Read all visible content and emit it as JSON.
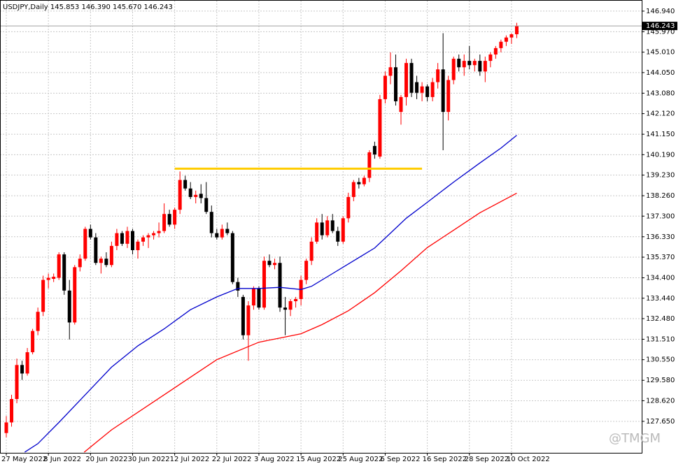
{
  "chart_data": {
    "type": "candlestick",
    "symbol": "USDJPY,Daily",
    "info_values": [
      "145.853",
      "146.390",
      "145.670",
      "146.243"
    ],
    "categories": [
      "27 May 2022",
      null,
      null,
      null,
      null,
      null,
      null,
      null,
      "8 Jun 2022",
      null,
      null,
      null,
      null,
      null,
      null,
      null,
      "20 Jun 2022",
      null,
      null,
      null,
      null,
      null,
      null,
      null,
      "30 Jun 2022",
      null,
      null,
      null,
      null,
      null,
      null,
      null,
      "12 Jul 2022",
      null,
      null,
      null,
      null,
      null,
      null,
      null,
      "22 Jul 2022",
      null,
      null,
      null,
      null,
      null,
      null,
      null,
      "3 Aug 2022",
      null,
      null,
      null,
      null,
      null,
      null,
      null,
      "15 Aug 2022",
      null,
      null,
      null,
      null,
      null,
      null,
      null,
      "25 Aug 2022",
      null,
      null,
      null,
      null,
      null,
      null,
      null,
      "6 Sep 2022",
      null,
      null,
      null,
      null,
      null,
      null,
      null,
      "16 Sep 2022",
      null,
      null,
      null,
      null,
      null,
      null,
      null,
      "28 Sep 2022",
      null,
      null,
      null,
      null,
      null,
      null,
      null,
      "10 Oct 2022",
      null
    ],
    "open": [
      127.1,
      127.6,
      128.7,
      130.3,
      129.9,
      130.9,
      131.9,
      132.8,
      134.3,
      134.35,
      134.4,
      135.5,
      133.8,
      132.3,
      134.9,
      135.3,
      136.7,
      136.3,
      135.1,
      135.3,
      135.0,
      135.9,
      136.5,
      136.0,
      136.6,
      135.7,
      136.1,
      136.3,
      136.4,
      136.5,
      136.6,
      137.4,
      136.9,
      137.6,
      139.0,
      138.6,
      138.2,
      138.35,
      138.15,
      137.5,
      136.5,
      136.3,
      136.7,
      136.5,
      134.2,
      133.5,
      131.7,
      133.1,
      133.9,
      133.0,
      135.2,
      135.0,
      135.1,
      133.0,
      132.9,
      133.3,
      133.4,
      134.3,
      135.2,
      136.1,
      137.0,
      136.4,
      137.1,
      136.6,
      136.1,
      137.2,
      138.2,
      138.9,
      138.8,
      139.1,
      140.6,
      140.1,
      142.8,
      143.9,
      144.3,
      142.2,
      142.9,
      144.5,
      143.6,
      143.1,
      143.4,
      142.9,
      143.6,
      144.2,
      142.2,
      143.7,
      144.7,
      144.3,
      144.6,
      144.4,
      144.6,
      144.1,
      144.6,
      144.9,
      145.2,
      145.5,
      145.7,
      145.853
    ],
    "high": [
      127.9,
      128.9,
      130.6,
      130.5,
      131.1,
      132.0,
      133.0,
      134.5,
      134.6,
      134.6,
      135.6,
      135.6,
      134.3,
      135.0,
      135.5,
      136.8,
      136.9,
      136.5,
      135.4,
      135.6,
      136.1,
      136.7,
      136.6,
      136.8,
      136.7,
      136.2,
      136.4,
      136.5,
      136.6,
      137.0,
      137.9,
      137.6,
      137.7,
      139.4,
      139.2,
      138.9,
      138.5,
      138.8,
      138.9,
      137.8,
      136.7,
      136.9,
      137.0,
      136.6,
      134.4,
      133.6,
      133.3,
      134.0,
      134.0,
      135.4,
      135.5,
      135.3,
      135.4,
      133.5,
      133.4,
      133.5,
      134.5,
      135.3,
      136.3,
      137.2,
      137.4,
      137.3,
      137.4,
      136.8,
      137.3,
      138.4,
      139.0,
      139.1,
      139.2,
      140.4,
      140.8,
      143.0,
      144.1,
      145.0,
      144.9,
      143.0,
      144.7,
      144.7,
      143.9,
      143.6,
      143.5,
      143.8,
      144.5,
      145.9,
      143.9,
      144.8,
      144.9,
      144.9,
      145.3,
      144.7,
      144.9,
      144.8,
      145.0,
      145.3,
      145.6,
      145.8,
      145.9,
      146.39
    ],
    "low": [
      126.9,
      127.4,
      128.5,
      129.6,
      129.8,
      130.8,
      131.7,
      132.6,
      133.9,
      134.2,
      134.3,
      133.6,
      131.5,
      132.2,
      134.7,
      135.2,
      136.2,
      135.0,
      134.6,
      134.9,
      134.9,
      135.7,
      135.9,
      135.8,
      135.5,
      135.3,
      135.9,
      135.8,
      136.2,
      136.3,
      136.5,
      136.8,
      136.7,
      137.4,
      138.5,
      138.1,
      137.9,
      137.9,
      137.4,
      136.3,
      136.2,
      136.2,
      136.4,
      134.1,
      133.5,
      131.5,
      130.5,
      132.9,
      132.9,
      132.9,
      134.9,
      134.8,
      132.8,
      131.7,
      132.6,
      133.0,
      133.1,
      134.1,
      135.0,
      136.0,
      136.2,
      136.3,
      136.5,
      135.9,
      136.0,
      137.0,
      138.0,
      138.6,
      138.7,
      138.9,
      140.0,
      140.0,
      142.6,
      143.5,
      142.5,
      141.6,
      142.5,
      142.9,
      142.8,
      142.7,
      142.7,
      142.7,
      143.3,
      140.4,
      141.8,
      143.5,
      144.1,
      143.9,
      144.2,
      144.1,
      143.9,
      143.6,
      144.3,
      144.7,
      145.0,
      145.3,
      145.4,
      145.67
    ],
    "close": [
      127.6,
      128.7,
      130.3,
      129.9,
      130.9,
      131.9,
      132.8,
      134.3,
      134.4,
      134.45,
      135.5,
      133.8,
      132.3,
      134.9,
      135.3,
      136.7,
      136.3,
      135.1,
      135.3,
      135.0,
      135.9,
      136.5,
      136.0,
      136.6,
      135.7,
      136.1,
      136.3,
      136.4,
      136.5,
      136.6,
      137.4,
      136.9,
      137.6,
      139.0,
      138.6,
      138.2,
      138.3,
      138.15,
      137.5,
      136.5,
      136.3,
      136.7,
      136.5,
      134.2,
      133.8,
      131.7,
      133.1,
      133.9,
      133.0,
      135.2,
      135.0,
      135.1,
      133.0,
      132.9,
      133.3,
      133.4,
      134.3,
      135.2,
      136.1,
      137.0,
      136.4,
      137.1,
      136.6,
      136.1,
      137.2,
      138.2,
      138.9,
      138.8,
      139.1,
      140.3,
      140.2,
      142.8,
      143.9,
      144.3,
      142.7,
      142.9,
      144.5,
      143.1,
      143.1,
      143.4,
      142.9,
      143.6,
      144.2,
      142.2,
      143.7,
      144.7,
      144.3,
      144.6,
      144.4,
      144.6,
      144.1,
      144.6,
      144.9,
      145.2,
      145.5,
      145.7,
      145.85,
      146.243
    ],
    "up_color": "#ff0000",
    "down_color": "#000000",
    "ylim": [
      126.17,
      147.43
    ],
    "yticks": [
      {
        "value": 146.94,
        "label": "146.940"
      },
      {
        "value": 145.97,
        "label": "145.970"
      },
      {
        "value": 145.01,
        "label": "145.010"
      },
      {
        "value": 144.05,
        "label": "144.050"
      },
      {
        "value": 143.08,
        "label": "143.080"
      },
      {
        "value": 142.12,
        "label": "142.120"
      },
      {
        "value": 141.15,
        "label": "141.150"
      },
      {
        "value": 140.19,
        "label": "140.190"
      },
      {
        "value": 139.23,
        "label": "139.230"
      },
      {
        "value": 138.26,
        "label": "138.260"
      },
      {
        "value": 137.3,
        "label": "137.300"
      },
      {
        "value": 136.33,
        "label": "136.330"
      },
      {
        "value": 135.37,
        "label": "135.370"
      },
      {
        "value": 134.4,
        "label": "134.400"
      },
      {
        "value": 133.44,
        "label": "133.440"
      },
      {
        "value": 132.48,
        "label": "132.480"
      },
      {
        "value": 131.51,
        "label": "131.510"
      },
      {
        "value": 130.55,
        "label": "130.550"
      },
      {
        "value": 129.58,
        "label": "129.580"
      },
      {
        "value": 128.62,
        "label": "128.620"
      },
      {
        "value": 127.65,
        "label": "127.650"
      }
    ],
    "grid": true,
    "last_price": 146.243,
    "moving_averages": [
      {
        "color": "#0000cc",
        "x": [
          3.5,
          6,
          10,
          15,
          20,
          25,
          30,
          35,
          40,
          44,
          48,
          52,
          56,
          58,
          62,
          66,
          70,
          73,
          76,
          80,
          85,
          90,
          94,
          97
        ],
        "values": [
          126.2,
          126.6,
          127.6,
          128.9,
          130.2,
          131.2,
          132.0,
          132.9,
          133.5,
          133.9,
          133.9,
          133.95,
          133.85,
          134.0,
          134.6,
          135.2,
          135.8,
          136.5,
          137.2,
          137.95,
          138.9,
          139.8,
          140.5,
          141.1
        ]
      },
      {
        "color": "#ff0000",
        "x": [
          14.8,
          20,
          30,
          40,
          48,
          52,
          56,
          60,
          65,
          70,
          75,
          80,
          85,
          90,
          97
        ],
        "values": [
          126.2,
          127.25,
          128.9,
          130.55,
          131.37,
          131.57,
          131.77,
          132.2,
          132.85,
          133.7,
          134.73,
          135.82,
          136.64,
          137.46,
          138.38
        ]
      }
    ],
    "level": {
      "value": 139.53,
      "x": [
        32,
        79
      ],
      "color": "#ffcc00"
    },
    "watermark": "@TMGM"
  }
}
